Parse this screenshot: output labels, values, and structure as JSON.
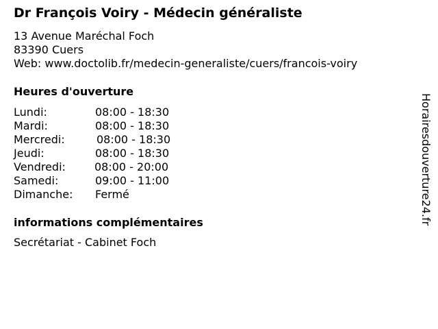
{
  "title": "Dr François Voiry - Médecin généraliste",
  "address": {
    "street": "13 Avenue Maréchal Foch",
    "city": "83390 Cuers",
    "web": "Web: www.doctolib.fr/medecin-generaliste/cuers/francois-voiry"
  },
  "hours_heading": "Heures d'ouverture",
  "hours": [
    {
      "day": "Lundi:",
      "time": "08:00 - 18:30"
    },
    {
      "day": "Mardi:",
      "time": "08:00 - 18:30"
    },
    {
      "day": "Mercredi:",
      "time": "08:00 - 18:30"
    },
    {
      "day": "Jeudi:",
      "time": "08:00 - 18:30"
    },
    {
      "day": "Vendredi:",
      "time": "08:00 - 20:00"
    },
    {
      "day": "Samedi:",
      "time": "09:00 - 11:00"
    },
    {
      "day": "Dimanche:",
      "time": "Fermé"
    }
  ],
  "info_heading": "informations complémentaires",
  "info_text": "Secrétariat - Cabinet Foch",
  "watermark": "Horairesdouverture24.fr"
}
